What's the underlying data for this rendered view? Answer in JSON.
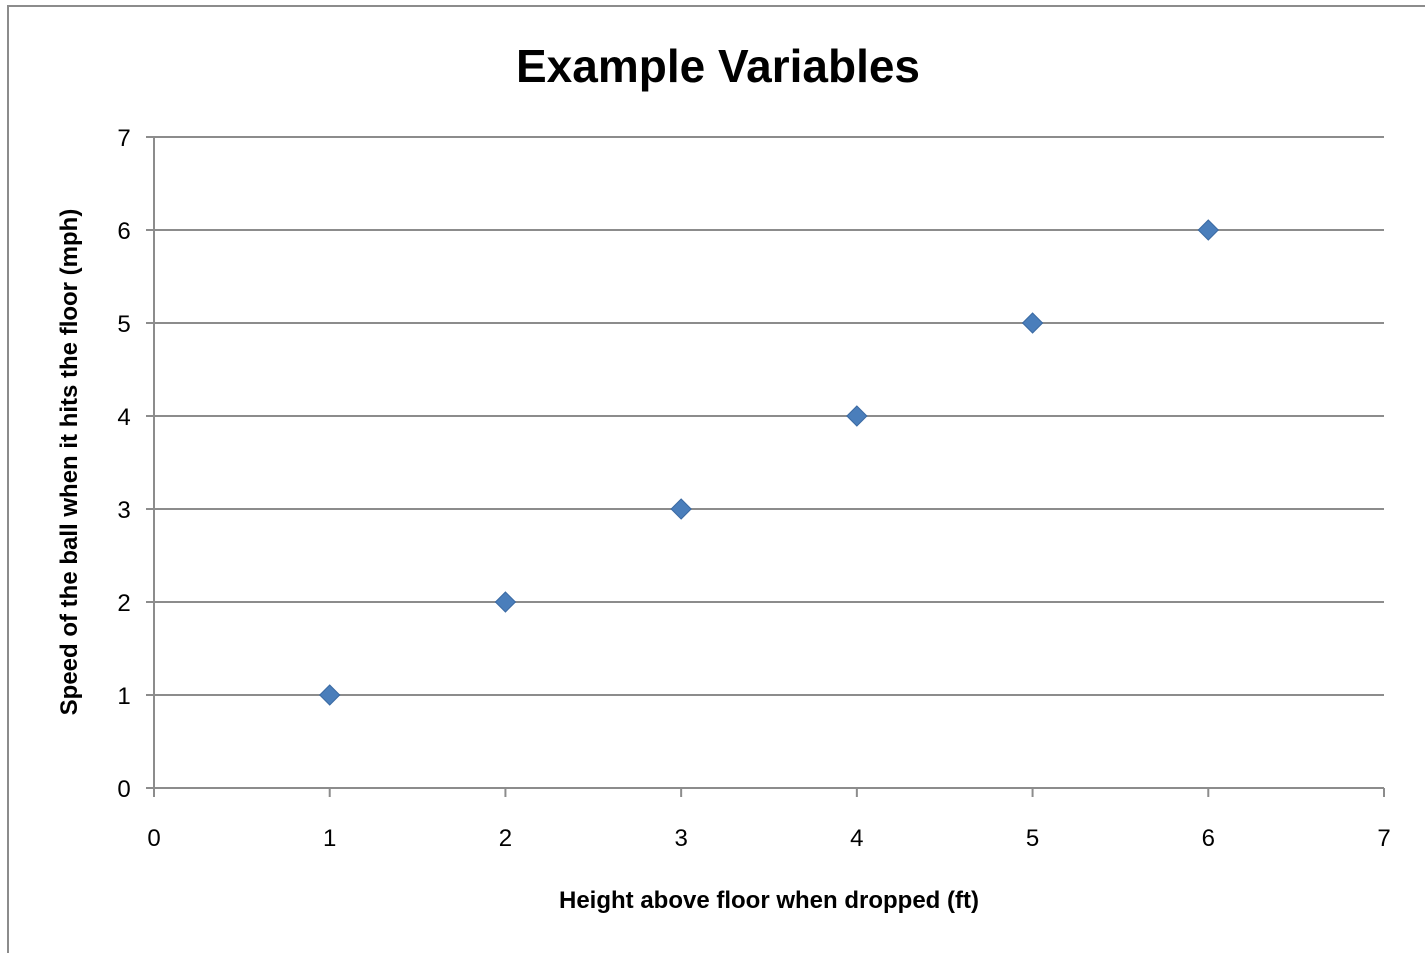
{
  "chart_data": {
    "type": "scatter",
    "title": "Example Variables",
    "xlabel": "Height above floor when dropped (ft)",
    "ylabel": "Speed of the ball when it hits the floor (mph)",
    "xlim": [
      0,
      7
    ],
    "ylim": [
      0,
      7
    ],
    "xticks": [
      "0",
      "1",
      "2",
      "3",
      "4",
      "5",
      "6",
      "7"
    ],
    "yticks": [
      "0",
      "1",
      "2",
      "3",
      "4",
      "5",
      "6",
      "7"
    ],
    "grid": "horizontal",
    "legend": "none",
    "marker": "diamond",
    "series": [
      {
        "points": [
          {
            "x": 1,
            "y": 1
          },
          {
            "x": 2,
            "y": 2
          },
          {
            "x": 3,
            "y": 3
          },
          {
            "x": 4,
            "y": 4
          },
          {
            "x": 5,
            "y": 5
          },
          {
            "x": 6,
            "y": 6
          }
        ],
        "color": "#4a7ebb"
      }
    ],
    "colors": {
      "frame": "#8c8c8c",
      "gridline": "#8c8c8c",
      "marker": "#4a7ebb",
      "marker_edge": "#3b6aa3"
    }
  }
}
